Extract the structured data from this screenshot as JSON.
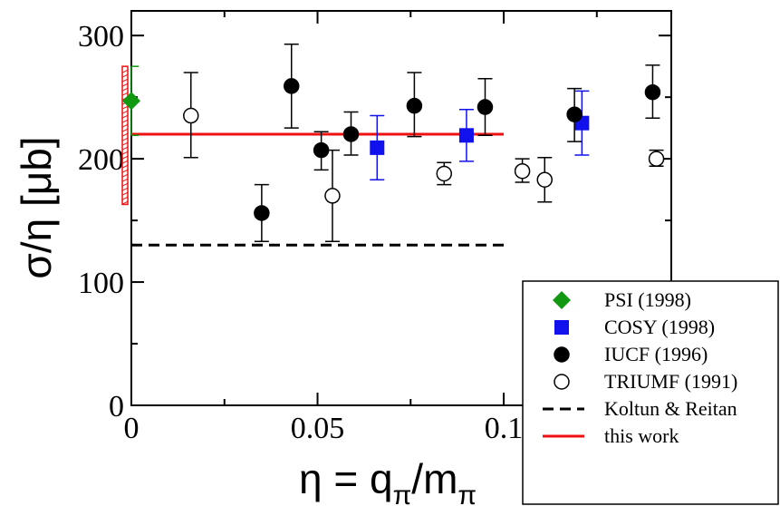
{
  "chart_data": {
    "type": "scatter",
    "xlabel": "η = q",
    "xlabel_sub1": "π",
    "xlabel_mid": "/m",
    "xlabel_sub2": "π",
    "ylabel": "σ/η [μb]",
    "xlim": [
      0,
      0.145
    ],
    "ylim": [
      0,
      320
    ],
    "x_ticks": [
      0,
      0.05,
      0.1
    ],
    "x_tick_labels": [
      "0",
      "0.05",
      "0.1"
    ],
    "y_ticks": [
      0,
      100,
      200,
      300
    ],
    "y_tick_labels": [
      "0",
      "100",
      "200",
      "300"
    ],
    "legend_position": "bottom-right",
    "series": [
      {
        "name": "PSI (1998)",
        "marker": "diamond",
        "color": "#119911",
        "filled": true,
        "points": [
          {
            "x": 0.0,
            "y": 247,
            "ylo": 219,
            "yhi": 275
          }
        ]
      },
      {
        "name": "COSY (1998)",
        "marker": "square",
        "color": "#1111ee",
        "filled": true,
        "points": [
          {
            "x": 0.066,
            "y": 209,
            "ylo": 183,
            "yhi": 235
          },
          {
            "x": 0.09,
            "y": 219,
            "ylo": 198,
            "yhi": 240
          },
          {
            "x": 0.121,
            "y": 229,
            "ylo": 203,
            "yhi": 255
          }
        ]
      },
      {
        "name": "IUCF (1996)",
        "marker": "circle",
        "color": "#000000",
        "filled": true,
        "points": [
          {
            "x": 0.035,
            "y": 156,
            "ylo": 133,
            "yhi": 179
          },
          {
            "x": 0.043,
            "y": 259,
            "ylo": 225,
            "yhi": 293
          },
          {
            "x": 0.051,
            "y": 207,
            "ylo": 191,
            "yhi": 222
          },
          {
            "x": 0.059,
            "y": 220,
            "ylo": 203,
            "yhi": 238
          },
          {
            "x": 0.076,
            "y": 243,
            "ylo": 218,
            "yhi": 270
          },
          {
            "x": 0.095,
            "y": 242,
            "ylo": 219,
            "yhi": 265
          },
          {
            "x": 0.119,
            "y": 236,
            "ylo": 214,
            "yhi": 257
          },
          {
            "x": 0.14,
            "y": 254,
            "ylo": 233,
            "yhi": 276
          }
        ]
      },
      {
        "name": "TRIUMF (1991)",
        "marker": "circle",
        "color": "#000000",
        "filled": false,
        "points": [
          {
            "x": 0.016,
            "y": 235,
            "ylo": 201,
            "yhi": 270
          },
          {
            "x": 0.054,
            "y": 170,
            "ylo": 133,
            "yhi": 207
          },
          {
            "x": 0.084,
            "y": 188,
            "ylo": 179,
            "yhi": 197
          },
          {
            "x": 0.105,
            "y": 190,
            "ylo": 181,
            "yhi": 200
          },
          {
            "x": 0.111,
            "y": 183,
            "ylo": 165,
            "yhi": 201
          },
          {
            "x": 0.141,
            "y": 200,
            "ylo": 194,
            "yhi": 207
          }
        ]
      }
    ],
    "lines": [
      {
        "name": "Koltun & Reitan",
        "y": 130,
        "x_from": 0.0,
        "x_to": 0.1,
        "color": "#000000",
        "dashed": true
      },
      {
        "name": "this work",
        "y": 220,
        "x_from": 0.0,
        "x_to": 0.1,
        "color": "#ee1111",
        "dashed": false
      }
    ],
    "band": {
      "x": 0.0,
      "ylo": 163,
      "yhi": 275,
      "color": "#ee1111"
    }
  }
}
